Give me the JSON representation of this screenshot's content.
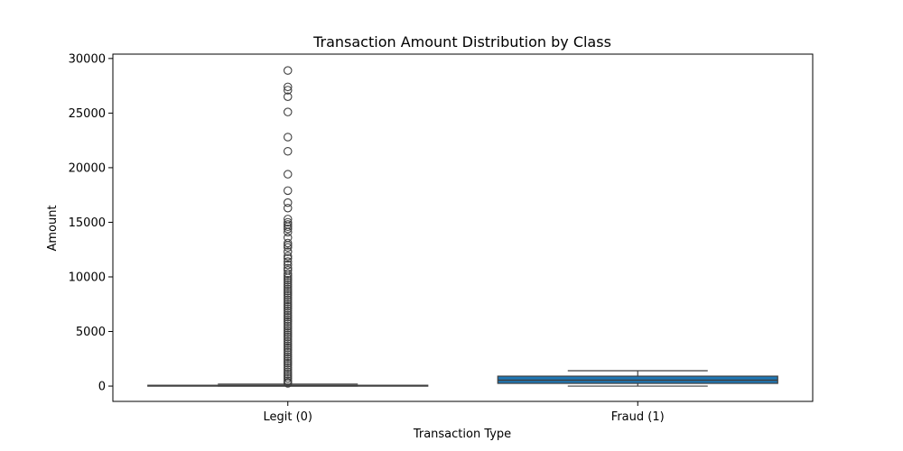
{
  "chart_data": {
    "type": "box",
    "title": "Transaction Amount Distribution by Class",
    "xlabel": "Transaction Type",
    "ylabel": "Amount",
    "ylim": [
      -1400,
      30400
    ],
    "yticks": [
      0,
      5000,
      10000,
      15000,
      20000,
      25000,
      30000
    ],
    "categories": [
      "Legit (0)",
      "Fraud (1)"
    ],
    "box_color": "#1f77b4",
    "boxes": [
      {
        "category": "Legit (0)",
        "whisker_low": 0,
        "q1": 5,
        "median": 22,
        "q3": 77,
        "whisker_high": 184,
        "outliers": [
          28900,
          27400,
          27100,
          26500,
          25100,
          22800,
          21500,
          19400,
          17900,
          16800,
          16300,
          15300,
          15000,
          14800,
          14600,
          14400,
          14100,
          13600,
          13100,
          12900,
          12700,
          12300,
          11900,
          11700,
          11400,
          11100,
          10800,
          10600,
          10300,
          10100,
          9900,
          9700,
          9500,
          9300,
          9100,
          8900,
          8700,
          8500,
          8300,
          8100,
          7900,
          7700,
          7500,
          7300,
          7100,
          6900,
          6700,
          6500,
          6300,
          6100,
          5900,
          5700,
          5500,
          5300,
          5100,
          4900,
          4700,
          4500,
          4300,
          4100,
          3900,
          3700,
          3500,
          3300,
          3100,
          2900,
          2700,
          2500,
          2300,
          2100,
          1900,
          1700,
          1500,
          1300,
          1100,
          900,
          700,
          500,
          350,
          250
        ]
      },
      {
        "category": "Fraud (1)",
        "whisker_low": 0,
        "q1": 250,
        "median": 540,
        "q3": 910,
        "whisker_high": 1410,
        "outliers": []
      }
    ],
    "grid": false
  }
}
